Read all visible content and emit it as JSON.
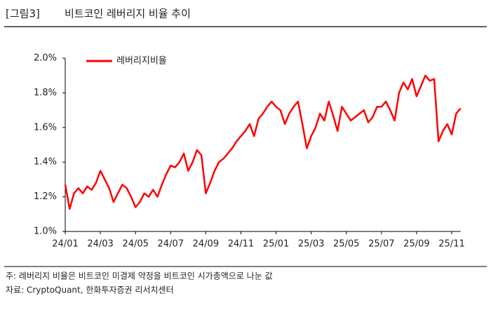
{
  "header": {
    "figure": "[그림3]",
    "title": "비트코인 레버리지 비율 추이"
  },
  "chart_data": {
    "type": "line",
    "categories": [
      "24/01",
      null,
      null,
      null,
      null,
      null,
      null,
      null,
      "24/03",
      null,
      null,
      null,
      null,
      null,
      null,
      null,
      "24/05",
      null,
      null,
      null,
      null,
      null,
      null,
      null,
      "24/07",
      null,
      null,
      null,
      null,
      null,
      null,
      null,
      "24/09",
      null,
      null,
      null,
      null,
      null,
      null,
      null,
      "24/11",
      null,
      null,
      null,
      null,
      null,
      null,
      null,
      "25/01",
      null,
      null,
      null,
      null,
      null,
      null,
      null,
      "25/03",
      null,
      null,
      null,
      null,
      null,
      null,
      null,
      "25/05",
      null,
      null,
      null,
      null,
      null,
      null,
      null,
      "25/07",
      null,
      null,
      null,
      null,
      null,
      null,
      null,
      "25/09",
      null,
      null,
      null,
      null,
      null,
      null,
      null,
      "25/11",
      null,
      null
    ],
    "series": [
      {
        "name": "레버리지비율",
        "color": "#ff0000",
        "values": [
          1.27,
          1.13,
          1.22,
          1.25,
          1.22,
          1.26,
          1.24,
          1.28,
          1.35,
          1.3,
          1.25,
          1.17,
          1.22,
          1.27,
          1.25,
          1.2,
          1.14,
          1.17,
          1.22,
          1.2,
          1.24,
          1.2,
          1.27,
          1.33,
          1.38,
          1.37,
          1.4,
          1.45,
          1.35,
          1.4,
          1.47,
          1.44,
          1.22,
          1.28,
          1.35,
          1.4,
          1.42,
          1.45,
          1.48,
          1.52,
          1.55,
          1.58,
          1.62,
          1.55,
          1.65,
          1.68,
          1.72,
          1.75,
          1.72,
          1.7,
          1.62,
          1.68,
          1.72,
          1.75,
          1.62,
          1.48,
          1.55,
          1.6,
          1.68,
          1.64,
          1.75,
          1.67,
          1.58,
          1.72,
          1.68,
          1.64,
          1.66,
          1.68,
          1.7,
          1.63,
          1.66,
          1.72,
          1.72,
          1.75,
          1.7,
          1.64,
          1.8,
          1.86,
          1.82,
          1.88,
          1.78,
          1.84,
          1.9,
          1.87,
          1.88,
          1.52,
          1.58,
          1.62,
          1.56,
          1.68,
          1.71
        ]
      }
    ],
    "ylim": [
      1.0,
      2.0
    ],
    "yticks": [
      {
        "value": 1.0,
        "label": "1.0%"
      },
      {
        "value": 1.2,
        "label": "1.2%"
      },
      {
        "value": 1.4,
        "label": "1.4%"
      },
      {
        "value": 1.6,
        "label": "1.6%"
      },
      {
        "value": 1.8,
        "label": "1.8%"
      },
      {
        "value": 2.0,
        "label": "2.0%"
      }
    ],
    "legend": "top-left"
  },
  "footer": {
    "note": "주: 레버리지 비율은 비트코인 미결제 약정을 비트코인 시가총액으로 나눈 값",
    "source": "자료: CryptoQuant, 한화투자증권 리서치센터"
  }
}
